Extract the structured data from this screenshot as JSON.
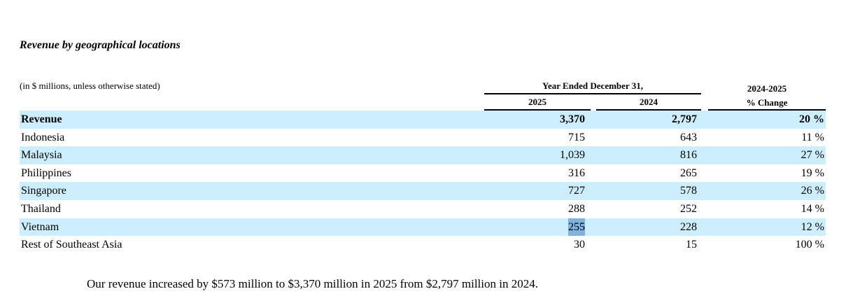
{
  "section_title": "Revenue by geographical locations",
  "units_note": "(in $ millions, unless otherwise stated)",
  "period_header": "Year Ended December 31,",
  "columns": {
    "year_2025": "2025",
    "year_2024": "2024",
    "change_line1": "2024-2025",
    "change_line2": "% Change"
  },
  "rows": [
    {
      "label": "Revenue",
      "v2025": "3,370",
      "v2024": "2,797",
      "change": "20 %"
    },
    {
      "label": "Indonesia",
      "v2025": "715",
      "v2024": "643",
      "change": "11 %"
    },
    {
      "label": "Malaysia",
      "v2025": "1,039",
      "v2024": "816",
      "change": "27 %"
    },
    {
      "label": "Philippines",
      "v2025": "316",
      "v2024": "265",
      "change": "19 %"
    },
    {
      "label": "Singapore",
      "v2025": "727",
      "v2024": "578",
      "change": "26 %"
    },
    {
      "label": "Thailand",
      "v2025": "288",
      "v2024": "252",
      "change": "14 %"
    },
    {
      "label": "Vietnam",
      "v2025": "255",
      "v2024": "228",
      "change": "12 %"
    },
    {
      "label": "Rest of Southeast Asia",
      "v2025": "30",
      "v2024": "15",
      "change": "100 %"
    }
  ],
  "summary": "Our revenue increased by $573 million to $3,370 million in 2025 from $2,797 million in 2024.",
  "colors": {
    "row_shade": "#cdeefe",
    "selection": "#7fb2de"
  }
}
